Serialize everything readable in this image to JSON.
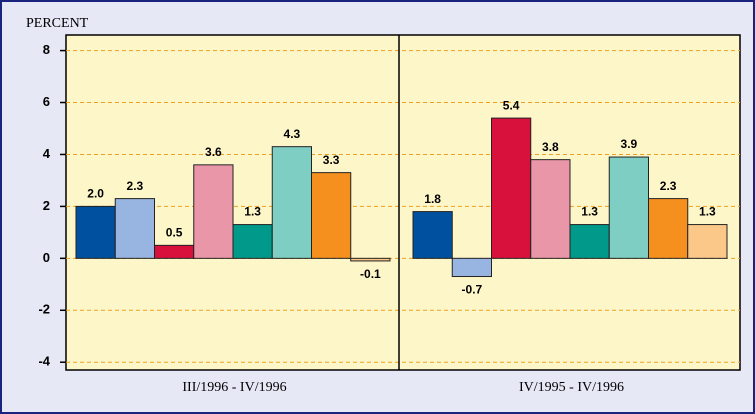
{
  "chart_data": {
    "type": "bar",
    "y_label": "PERCENT",
    "categories": [
      "III/1996 - IV/1996",
      "IV/1995 - IV/1996"
    ],
    "series": [
      {
        "color": "#0050a0",
        "values": [
          2.0,
          1.8
        ],
        "value_labels": [
          "2.0",
          "1.8"
        ]
      },
      {
        "color": "#98b4e0",
        "values": [
          2.3,
          -0.7
        ],
        "value_labels": [
          "2.3",
          "-0.7"
        ]
      },
      {
        "color": "#d8103c",
        "values": [
          0.5,
          5.4
        ],
        "value_labels": [
          "0.5",
          "5.4"
        ]
      },
      {
        "color": "#e896a8",
        "values": [
          3.6,
          3.8
        ],
        "value_labels": [
          "3.6",
          "3.8"
        ]
      },
      {
        "color": "#00998a",
        "values": [
          1.3,
          1.3
        ],
        "value_labels": [
          "1.3",
          "1.3"
        ]
      },
      {
        "color": "#7ecec4",
        "values": [
          4.3,
          3.9
        ],
        "value_labels": [
          "4.3",
          "3.9"
        ]
      },
      {
        "color": "#f5901e",
        "values": [
          3.3,
          2.3
        ],
        "value_labels": [
          "3.3",
          "2.3"
        ]
      },
      {
        "color": "#fcc88a",
        "values": [
          -0.1,
          1.3
        ],
        "value_labels": [
          "-0.1",
          "1.3"
        ]
      }
    ],
    "ylim": [
      -4.3,
      8.6
    ],
    "yticks": [
      -4,
      -2,
      0,
      2,
      4,
      6,
      8
    ],
    "grid": true
  }
}
